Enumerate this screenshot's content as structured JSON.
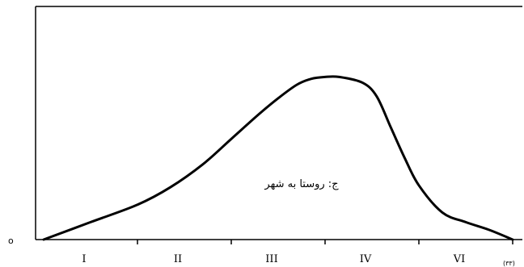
{
  "chart_data": {
    "type": "line",
    "title": "",
    "xlabel": "",
    "ylabel": "",
    "origin_label": "o",
    "categories": [
      "I",
      "II",
      "III",
      "IV",
      "VI"
    ],
    "xlim": [
      0,
      6
    ],
    "ylim": [
      0,
      1
    ],
    "x_tick_positions": [
      1,
      2,
      3,
      4,
      5
    ],
    "tick_label_positions": [
      0.5,
      1.5,
      2.5,
      3.5,
      4.5
    ],
    "series": [
      {
        "x": [
          0,
          0.5,
          1,
          1.35,
          1.7,
          2,
          2.3,
          2.5,
          2.7,
          2.85,
          3,
          3.15,
          3.4,
          3.55,
          3.7,
          3.85,
          4,
          4.25,
          4.5,
          4.75,
          5
        ],
        "y": [
          0,
          0.09,
          0.18,
          0.27,
          0.39,
          0.52,
          0.65,
          0.73,
          0.8,
          0.83,
          0.84,
          0.84,
          0.81,
          0.74,
          0.58,
          0.42,
          0.28,
          0.14,
          0.09,
          0.05,
          0
        ]
      }
    ],
    "annotations": [
      {
        "text": "ج: روستا به شهر",
        "x": 2.75,
        "y": 0.27
      }
    ],
    "corner_note": "(۳۳)",
    "grid": false,
    "colors": {
      "line": "#000000",
      "axis": "#000000"
    }
  }
}
